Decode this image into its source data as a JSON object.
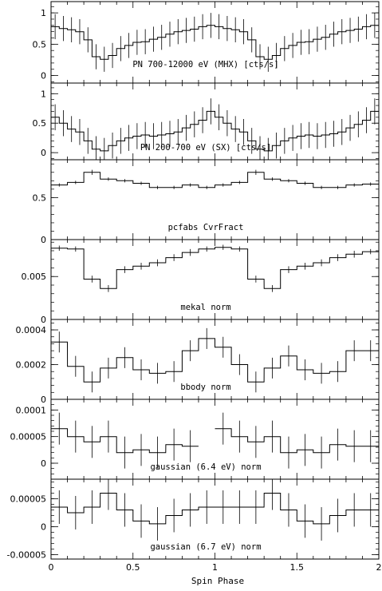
{
  "chart_data": [
    {
      "type": "line",
      "label": "PN 700-12000 eV (MHX) [cts/s]",
      "ylim": [
        -0.12,
        1.18
      ],
      "yticks": [
        "0",
        "0.5",
        "1"
      ],
      "ytick_values": [
        0,
        0.5,
        1
      ],
      "x": [
        0.025,
        0.075,
        0.125,
        0.175,
        0.225,
        0.275,
        0.325,
        0.375,
        0.425,
        0.475,
        0.525,
        0.575,
        0.625,
        0.675,
        0.725,
        0.775,
        0.825,
        0.875,
        0.925,
        0.975,
        1.025,
        1.075,
        1.125,
        1.175,
        1.225,
        1.275,
        1.325,
        1.375,
        1.425,
        1.475,
        1.525,
        1.575,
        1.625,
        1.675,
        1.725,
        1.775,
        1.825,
        1.875,
        1.925,
        1.975
      ],
      "y": [
        0.78,
        0.75,
        0.73,
        0.7,
        0.57,
        0.3,
        0.26,
        0.32,
        0.43,
        0.48,
        0.53,
        0.54,
        0.58,
        0.61,
        0.66,
        0.7,
        0.72,
        0.74,
        0.78,
        0.8,
        0.78,
        0.75,
        0.73,
        0.7,
        0.57,
        0.3,
        0.26,
        0.32,
        0.43,
        0.48,
        0.53,
        0.54,
        0.58,
        0.61,
        0.66,
        0.7,
        0.72,
        0.74,
        0.78,
        0.8
      ],
      "err": [
        0.2,
        0.2,
        0.2,
        0.2,
        0.2,
        0.2,
        0.2,
        0.2,
        0.2,
        0.2,
        0.2,
        0.2,
        0.2,
        0.2,
        0.2,
        0.2,
        0.2,
        0.2,
        0.2,
        0.2,
        0.2,
        0.2,
        0.2,
        0.2,
        0.2,
        0.2,
        0.2,
        0.2,
        0.2,
        0.2,
        0.2,
        0.2,
        0.2,
        0.2,
        0.2,
        0.2,
        0.2,
        0.2,
        0.2,
        0.2
      ]
    },
    {
      "type": "line",
      "label": "PN 200-700 eV (SX) [cts/s]",
      "ylim": [
        -0.12,
        1.18
      ],
      "yticks": [
        "0",
        "0.5",
        "1"
      ],
      "ytick_values": [
        0,
        0.5,
        1
      ],
      "x": [
        0.025,
        0.075,
        0.125,
        0.175,
        0.225,
        0.275,
        0.325,
        0.375,
        0.425,
        0.475,
        0.525,
        0.575,
        0.625,
        0.675,
        0.725,
        0.775,
        0.825,
        0.875,
        0.925,
        0.975,
        1.025,
        1.075,
        1.125,
        1.175,
        1.225,
        1.275,
        1.325,
        1.375,
        1.425,
        1.475,
        1.525,
        1.575,
        1.625,
        1.675,
        1.725,
        1.775,
        1.825,
        1.875,
        1.925,
        1.975
      ],
      "y": [
        0.6,
        0.5,
        0.4,
        0.35,
        0.2,
        0.06,
        0.03,
        0.12,
        0.2,
        0.25,
        0.28,
        0.3,
        0.28,
        0.3,
        0.32,
        0.35,
        0.42,
        0.48,
        0.55,
        0.7,
        0.6,
        0.5,
        0.4,
        0.35,
        0.2,
        0.06,
        0.03,
        0.12,
        0.2,
        0.25,
        0.28,
        0.3,
        0.28,
        0.3,
        0.32,
        0.35,
        0.42,
        0.48,
        0.55,
        0.7
      ],
      "err": [
        0.22,
        0.22,
        0.22,
        0.22,
        0.22,
        0.22,
        0.22,
        0.22,
        0.22,
        0.22,
        0.22,
        0.22,
        0.22,
        0.22,
        0.22,
        0.22,
        0.22,
        0.22,
        0.22,
        0.22,
        0.22,
        0.22,
        0.22,
        0.22,
        0.22,
        0.22,
        0.22,
        0.22,
        0.22,
        0.22,
        0.22,
        0.22,
        0.22,
        0.22,
        0.22,
        0.22,
        0.22,
        0.22,
        0.22,
        0.22
      ]
    },
    {
      "type": "line",
      "label": "pcfabs CvrFract",
      "ylim": [
        0,
        0.95
      ],
      "yticks": [
        "0",
        "0.5"
      ],
      "ytick_values": [
        0,
        0.5
      ],
      "x": [
        0.05,
        0.15,
        0.25,
        0.35,
        0.45,
        0.55,
        0.65,
        0.75,
        0.85,
        0.95,
        1.05,
        1.15,
        1.25,
        1.35,
        1.45,
        1.55,
        1.65,
        1.75,
        1.85,
        1.95
      ],
      "y": [
        0.65,
        0.68,
        0.8,
        0.72,
        0.7,
        0.67,
        0.62,
        0.62,
        0.65,
        0.62,
        0.65,
        0.68,
        0.8,
        0.72,
        0.7,
        0.67,
        0.62,
        0.62,
        0.65,
        0.66
      ],
      "err": [
        0.02,
        0.02,
        0.03,
        0.02,
        0.02,
        0.02,
        0.02,
        0.02,
        0.02,
        0.02,
        0.02,
        0.02,
        0.03,
        0.02,
        0.02,
        0.02,
        0.02,
        0.02,
        0.02,
        0.02
      ]
    },
    {
      "type": "line",
      "label": "mekal norm",
      "ylim": [
        0,
        0.0093
      ],
      "yticks": [
        "0",
        "0.005"
      ],
      "ytick_values": [
        0,
        0.005
      ],
      "x": [
        0.05,
        0.15,
        0.25,
        0.35,
        0.45,
        0.55,
        0.65,
        0.75,
        0.85,
        0.95,
        1.05,
        1.15,
        1.25,
        1.35,
        1.45,
        1.55,
        1.65,
        1.75,
        1.85,
        1.95
      ],
      "y": [
        0.0083,
        0.0082,
        0.0047,
        0.0036,
        0.0058,
        0.0062,
        0.0066,
        0.0072,
        0.0078,
        0.0082,
        0.0084,
        0.0082,
        0.0047,
        0.0036,
        0.0058,
        0.0062,
        0.0066,
        0.0072,
        0.0076,
        0.0079
      ],
      "err": [
        0.0003,
        0.0003,
        0.0004,
        0.0004,
        0.0004,
        0.0004,
        0.0004,
        0.0004,
        0.0004,
        0.0003,
        0.0003,
        0.0003,
        0.0004,
        0.0004,
        0.0004,
        0.0004,
        0.0004,
        0.0004,
        0.0004,
        0.0003
      ]
    },
    {
      "type": "line",
      "label": "bbody norm",
      "ylim": [
        0,
        0.00046
      ],
      "yticks": [
        "0",
        "0.0002",
        "0.0004"
      ],
      "ytick_values": [
        0,
        0.0002,
        0.0004
      ],
      "x": [
        0.05,
        0.15,
        0.25,
        0.35,
        0.45,
        0.55,
        0.65,
        0.75,
        0.85,
        0.95,
        1.05,
        1.15,
        1.25,
        1.35,
        1.45,
        1.55,
        1.65,
        1.75,
        1.85,
        1.95
      ],
      "y": [
        0.00033,
        0.00019,
        0.0001,
        0.00018,
        0.00024,
        0.00017,
        0.00015,
        0.00016,
        0.00028,
        0.00035,
        0.0003,
        0.0002,
        0.0001,
        0.00018,
        0.00025,
        0.00017,
        0.00015,
        0.00016,
        0.00028,
        0.00028
      ],
      "err": [
        6e-05,
        6e-05,
        6e-05,
        6e-05,
        6e-05,
        6e-05,
        6e-05,
        6e-05,
        6e-05,
        6e-05,
        6e-05,
        6e-05,
        6e-05,
        6e-05,
        6e-05,
        6e-05,
        6e-05,
        6e-05,
        6e-05,
        6e-05
      ]
    },
    {
      "type": "line",
      "label": "gaussian (6.4 eV) norm",
      "ylim": [
        -3e-05,
        0.00012
      ],
      "yticks": [
        "0",
        "0.00005",
        "0.0001"
      ],
      "ytick_values": [
        0,
        5e-05,
        0.0001
      ],
      "x": [
        0.05,
        0.15,
        0.25,
        0.35,
        0.45,
        0.55,
        0.65,
        0.75,
        0.85,
        1.05,
        1.15,
        1.25,
        1.35,
        1.45,
        1.55,
        1.65,
        1.75,
        1.85,
        1.95
      ],
      "y": [
        6.5e-05,
        5e-05,
        4e-05,
        5e-05,
        2e-05,
        2.5e-05,
        2e-05,
        3.5e-05,
        3.2e-05,
        6.5e-05,
        5e-05,
        4e-05,
        5e-05,
        2e-05,
        2.5e-05,
        2e-05,
        3.5e-05,
        3.2e-05,
        3.2e-05
      ],
      "err": [
        3e-05,
        3e-05,
        3e-05,
        3e-05,
        3e-05,
        3e-05,
        3e-05,
        3e-05,
        3e-05,
        3e-05,
        3e-05,
        3e-05,
        3e-05,
        3e-05,
        3e-05,
        3e-05,
        3e-05,
        3e-05,
        3e-05
      ]
    },
    {
      "type": "line",
      "label": "gaussian (6.7 eV) norm",
      "ylim": [
        -5.8e-05,
        8.5e-05
      ],
      "yticks": [
        "-0.00005",
        "0",
        "0.00005"
      ],
      "ytick_values": [
        -5e-05,
        0,
        5e-05
      ],
      "x": [
        0.05,
        0.15,
        0.25,
        0.35,
        0.45,
        0.55,
        0.65,
        0.75,
        0.85,
        0.95,
        1.05,
        1.15,
        1.25,
        1.35,
        1.45,
        1.55,
        1.65,
        1.75,
        1.85,
        1.95
      ],
      "y": [
        3.5e-05,
        2.5e-05,
        3.5e-05,
        6e-05,
        3e-05,
        1e-05,
        5e-06,
        2e-05,
        3e-05,
        3.5e-05,
        3.5e-05,
        3.5e-05,
        3.5e-05,
        6e-05,
        3e-05,
        1e-05,
        5e-06,
        2e-05,
        3e-05,
        3e-05
      ],
      "err": [
        3e-05,
        3e-05,
        3e-05,
        3e-05,
        3e-05,
        3e-05,
        3e-05,
        3e-05,
        3e-05,
        3e-05,
        3e-05,
        3e-05,
        3e-05,
        3e-05,
        3e-05,
        3e-05,
        3e-05,
        3e-05,
        3e-05,
        3e-05
      ]
    }
  ],
  "x_axis": {
    "label": "Spin Phase",
    "xlim": [
      0,
      2
    ],
    "ticks": [
      "0",
      "0.5",
      "1",
      "1.5",
      "2"
    ],
    "tick_values": [
      0,
      0.5,
      1,
      1.5,
      2
    ]
  },
  "colors": {
    "ink": "#000000",
    "background": "#ffffff"
  }
}
